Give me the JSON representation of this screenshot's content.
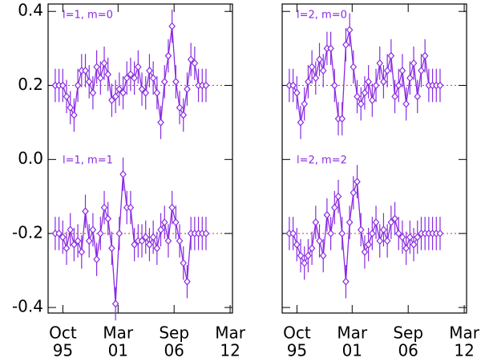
{
  "chart_data": [
    {
      "type": "line",
      "x": [
        1995.0,
        1995.37,
        1995.74,
        1996.11,
        1996.48,
        1996.85,
        1997.22,
        1997.59,
        1997.96,
        1998.33,
        1998.7,
        1999.07,
        1999.44,
        1999.81,
        2000.18,
        2000.55,
        2000.92,
        2001.29,
        2001.66,
        2002.03,
        2002.4,
        2002.77,
        2003.14,
        2003.51,
        2003.88,
        2004.25,
        2004.62,
        2004.99,
        2005.36,
        2005.73,
        2006.1,
        2006.47,
        2006.84,
        2007.21,
        2007.58,
        2007.95,
        2008.32,
        2008.69,
        2009.06,
        2009.43,
        2009.8
      ],
      "xlim": [
        1994.3,
        2012.4
      ],
      "ylim": [
        -0.415,
        0.42
      ],
      "xticks": [
        {
          "value": 1995.75,
          "label": [
            "Oct",
            "95"
          ]
        },
        {
          "value": 2001.17,
          "label": [
            "Mar",
            "01"
          ]
        },
        {
          "value": 2006.67,
          "label": [
            "Sep",
            "06"
          ]
        },
        {
          "value": 2012.17,
          "label": [
            "Mar",
            "12"
          ]
        }
      ],
      "yticks": [
        0.4,
        0.2,
        {
          "value": 0,
          "label": "0.0"
        },
        -0.2,
        -0.4
      ],
      "reference_lines": [
        0.2,
        -0.2
      ],
      "reference_color": "#e0302a",
      "series": [
        {
          "name": "l=1, m=0",
          "color": "#8a2be2",
          "error": 0.045,
          "values": [
            0.2,
            0.2,
            0.2,
            0.17,
            0.14,
            0.12,
            0.2,
            0.24,
            0.24,
            0.21,
            0.18,
            0.25,
            0.22,
            0.26,
            0.23,
            0.16,
            0.17,
            0.19,
            0.18,
            0.22,
            0.23,
            0.22,
            0.25,
            0.19,
            0.18,
            0.24,
            0.22,
            0.18,
            0.1,
            0.21,
            0.28,
            0.36,
            0.21,
            0.14,
            0.12,
            0.19,
            0.27,
            0.26,
            0.2,
            0.2,
            0.2
          ]
        },
        {
          "name": "l=1, m=1",
          "color": "#8a2be2",
          "error": 0.045,
          "values": [
            -0.2,
            -0.2,
            -0.21,
            -0.24,
            -0.19,
            -0.23,
            -0.22,
            -0.25,
            -0.14,
            -0.22,
            -0.19,
            -0.27,
            -0.2,
            -0.13,
            -0.16,
            -0.24,
            -0.39,
            -0.2,
            -0.04,
            -0.13,
            -0.13,
            -0.23,
            -0.22,
            -0.22,
            -0.21,
            -0.23,
            -0.21,
            -0.24,
            -0.19,
            -0.17,
            -0.22,
            -0.13,
            -0.17,
            -0.22,
            -0.28,
            -0.33,
            -0.2,
            -0.2,
            -0.2,
            -0.2,
            -0.2
          ]
        }
      ]
    },
    {
      "type": "line",
      "x": [
        1995.0,
        1995.37,
        1995.74,
        1996.11,
        1996.48,
        1996.85,
        1997.22,
        1997.59,
        1997.96,
        1998.33,
        1998.7,
        1999.07,
        1999.44,
        1999.81,
        2000.18,
        2000.55,
        2000.92,
        2001.29,
        2001.66,
        2002.03,
        2002.4,
        2002.77,
        2003.14,
        2003.51,
        2003.88,
        2004.25,
        2004.62,
        2004.99,
        2005.36,
        2005.73,
        2006.1,
        2006.47,
        2006.84,
        2007.21,
        2007.58,
        2007.95,
        2008.32,
        2008.69,
        2009.06,
        2009.43,
        2009.8
      ],
      "xlim": [
        1994.3,
        2012.4
      ],
      "ylim": [
        -0.415,
        0.42
      ],
      "xticks": [
        {
          "value": 1995.75,
          "label": [
            "Oct",
            "95"
          ]
        },
        {
          "value": 2001.17,
          "label": [
            "Mar",
            "01"
          ]
        },
        {
          "value": 2006.67,
          "label": [
            "Sep",
            "06"
          ]
        },
        {
          "value": 2012.17,
          "label": [
            "Mar",
            "12"
          ]
        }
      ],
      "yticks": [
        0.4,
        0.2,
        0,
        -0.2,
        -0.4
      ],
      "reference_lines": [
        0.2,
        -0.2
      ],
      "reference_color": "#e0302a",
      "series": [
        {
          "name": "l=2, m=0",
          "color": "#8a2be2",
          "error": 0.045,
          "values": [
            0.2,
            0.2,
            0.18,
            0.1,
            0.15,
            0.21,
            0.25,
            0.22,
            0.27,
            0.24,
            0.3,
            0.3,
            0.2,
            0.11,
            0.11,
            0.31,
            0.35,
            0.25,
            0.17,
            0.15,
            0.18,
            0.21,
            0.16,
            0.2,
            0.26,
            0.21,
            0.24,
            0.28,
            0.17,
            0.2,
            0.24,
            0.15,
            0.22,
            0.26,
            0.17,
            0.24,
            0.28,
            0.2,
            0.2,
            0.2,
            0.2
          ]
        },
        {
          "name": "l=2, m=2",
          "color": "#8a2be2",
          "error": 0.045,
          "values": [
            -0.2,
            -0.2,
            -0.23,
            -0.26,
            -0.28,
            -0.26,
            -0.24,
            -0.17,
            -0.22,
            -0.26,
            -0.15,
            -0.2,
            -0.13,
            -0.1,
            -0.2,
            -0.33,
            -0.17,
            -0.09,
            -0.06,
            -0.19,
            -0.25,
            -0.23,
            -0.2,
            -0.17,
            -0.22,
            -0.19,
            -0.22,
            -0.17,
            -0.16,
            -0.2,
            -0.21,
            -0.24,
            -0.21,
            -0.23,
            -0.21,
            -0.2,
            -0.2,
            -0.2,
            -0.2,
            -0.2,
            -0.2
          ]
        }
      ]
    }
  ]
}
